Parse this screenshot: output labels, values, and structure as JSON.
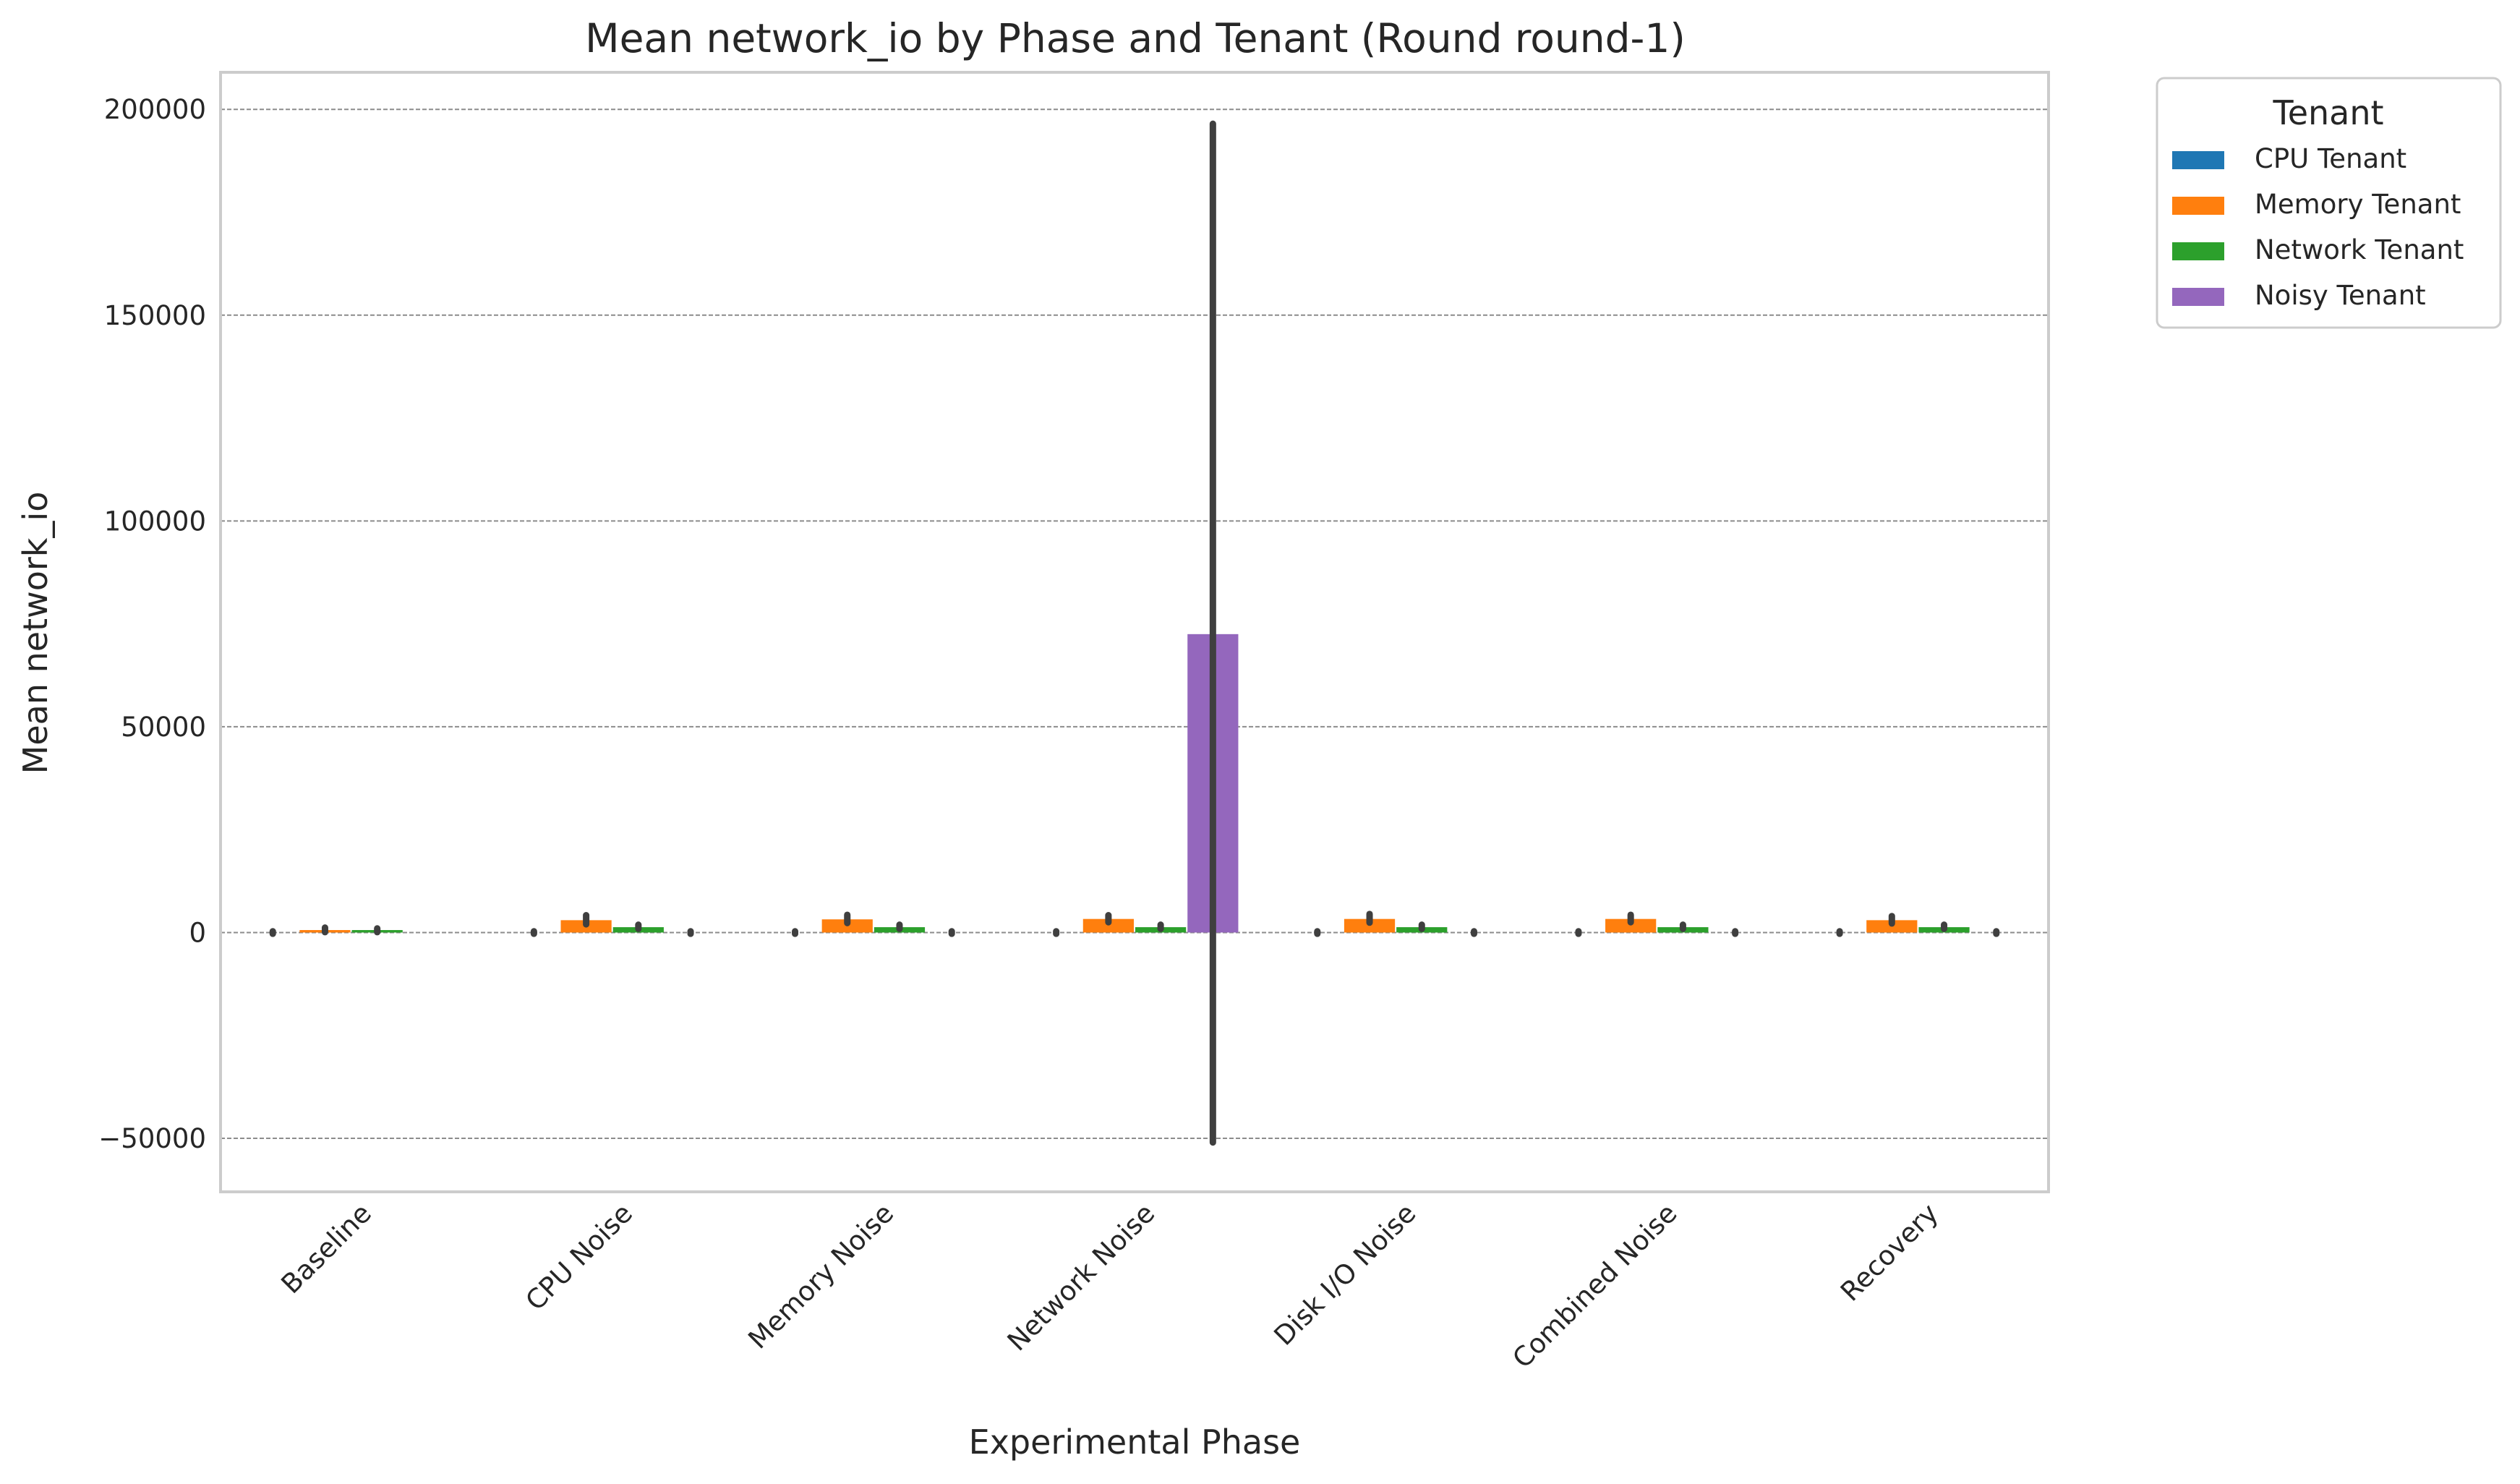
{
  "chart_data": {
    "type": "bar",
    "title": "Mean network_io by Phase and Tenant (Round round-1)",
    "xlabel": "Experimental Phase",
    "ylabel": "Mean network_io",
    "ylim": [
      -63000,
      209000
    ],
    "yticks": [
      -50000,
      0,
      50000,
      100000,
      150000,
      200000
    ],
    "ytick_labels": [
      "−50000",
      "0",
      "50000",
      "100000",
      "150000",
      "200000"
    ],
    "grid": true,
    "legend": {
      "title": "Tenant",
      "placement": "outside-top-right"
    },
    "categories": [
      "Baseline",
      "CPU Noise",
      "Memory Noise",
      "Network Noise",
      "Disk I/O Noise",
      "Combined Noise",
      "Recovery"
    ],
    "series": [
      {
        "name": "CPU Tenant",
        "color": "#1f77b4",
        "values": [
          0,
          0,
          0,
          0,
          0,
          0,
          0
        ],
        "err_low": [
          -300,
          -300,
          -300,
          -300,
          -300,
          -300,
          -300
        ],
        "err_high": [
          300,
          300,
          300,
          300,
          300,
          300,
          300
        ]
      },
      {
        "name": "Memory Tenant",
        "color": "#ff7f0e",
        "values": [
          600,
          3000,
          3200,
          3300,
          3300,
          3300,
          3000
        ],
        "err_low": [
          100,
          2000,
          2300,
          2500,
          2400,
          2500,
          2200
        ],
        "err_high": [
          1200,
          4200,
          4300,
          4200,
          4500,
          4300,
          4000
        ]
      },
      {
        "name": "Network Tenant",
        "color": "#2ca02c",
        "values": [
          600,
          1300,
          1300,
          1300,
          1300,
          1300,
          1300
        ],
        "err_low": [
          100,
          900,
          900,
          900,
          900,
          900,
          900
        ],
        "err_high": [
          1000,
          1900,
          1900,
          1900,
          1900,
          1900,
          1900
        ]
      },
      {
        "name": "Noisy Tenant",
        "color": "#9467bd",
        "values": [
          null,
          0,
          0,
          72500,
          0,
          0,
          0
        ],
        "err_low": [
          null,
          -300,
          -300,
          -51000,
          -300,
          -300,
          -300
        ],
        "err_high": [
          null,
          300,
          300,
          196500,
          300,
          300,
          300
        ]
      }
    ],
    "errorbar_color": "#3f3f3f",
    "grid_color": "#8c8c8c",
    "frame_color": "#cccccc"
  }
}
